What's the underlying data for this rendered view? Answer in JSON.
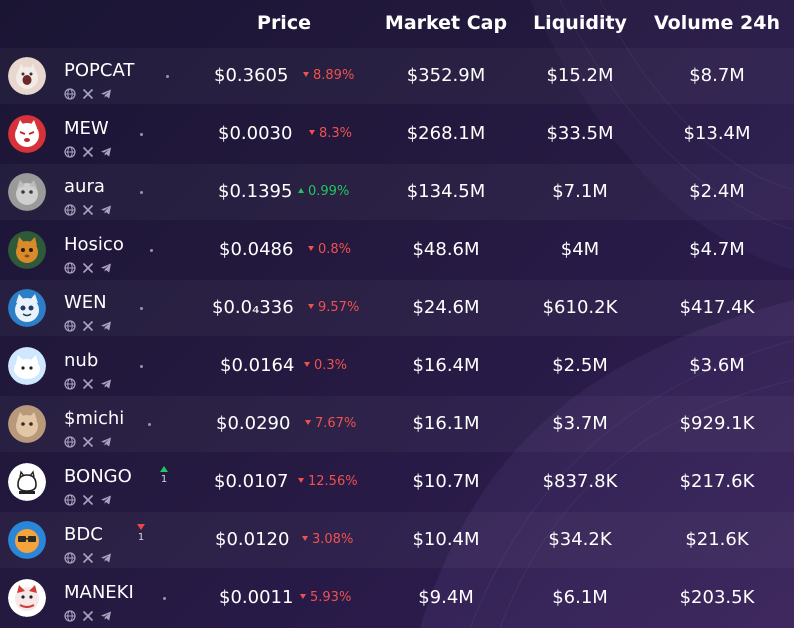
{
  "columns": {
    "price": "Price",
    "market_cap": "Market Cap",
    "liquidity": "Liquidity",
    "volume": "Volume 24h"
  },
  "colors": {
    "down": "#f0514e",
    "up": "#22c55e",
    "background": "#1b1534"
  },
  "social_icons": [
    "globe-icon",
    "x-icon",
    "telegram-icon"
  ],
  "rows": [
    {
      "name": "POPCAT",
      "price": "$0.3605",
      "change": "8.89%",
      "direction": "down",
      "market_cap": "$352.9M",
      "liquidity": "$15.2M",
      "volume": "$8.7M"
    },
    {
      "name": "MEW",
      "price": "$0.0030",
      "change": "8.3%",
      "direction": "down",
      "market_cap": "$268.1M",
      "liquidity": "$33.5M",
      "volume": "$13.4M"
    },
    {
      "name": "aura",
      "price": "$0.1395",
      "change": "0.99%",
      "direction": "up",
      "market_cap": "$134.5M",
      "liquidity": "$7.1M",
      "volume": "$2.4M"
    },
    {
      "name": "Hosico",
      "price": "$0.0486",
      "change": "0.8%",
      "direction": "down",
      "market_cap": "$48.6M",
      "liquidity": "$4M",
      "volume": "$4.7M"
    },
    {
      "name": "WEN",
      "price": "$0.0₄336",
      "change": "9.57%",
      "direction": "down",
      "market_cap": "$24.6M",
      "liquidity": "$610.2K",
      "volume": "$417.4K"
    },
    {
      "name": "nub",
      "price": "$0.0164",
      "change": "0.3%",
      "direction": "down",
      "market_cap": "$16.4M",
      "liquidity": "$2.5M",
      "volume": "$3.6M"
    },
    {
      "name": "$michi",
      "price": "$0.0290",
      "change": "7.67%",
      "direction": "down",
      "market_cap": "$16.1M",
      "liquidity": "$3.7M",
      "volume": "$929.1K"
    },
    {
      "name": "BONGO",
      "price": "$0.0107",
      "change": "12.56%",
      "direction": "down",
      "market_cap": "$10.7M",
      "liquidity": "$837.8K",
      "volume": "$217.6K",
      "rank_trend": {
        "direction": "up",
        "count": "1"
      }
    },
    {
      "name": "BDC",
      "price": "$0.0120",
      "change": "3.08%",
      "direction": "down",
      "market_cap": "$10.4M",
      "liquidity": "$34.2K",
      "volume": "$21.6K",
      "rank_trend": {
        "direction": "down",
        "count": "1"
      }
    },
    {
      "name": "MANEKI",
      "price": "$0.0011",
      "change": "5.93%",
      "direction": "down",
      "market_cap": "$9.4M",
      "liquidity": "$6.1M",
      "volume": "$203.5K"
    }
  ]
}
